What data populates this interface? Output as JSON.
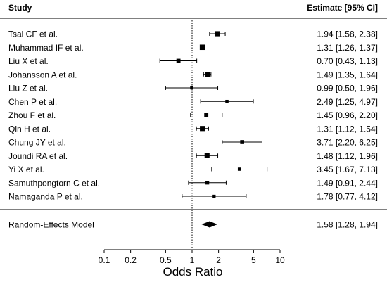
{
  "chart_data": {
    "type": "forest",
    "header_left": "Study",
    "header_right": "Estimate [95% CI]",
    "xlabel": "Odds Ratio",
    "x_scale": "log",
    "xlim": [
      0.1,
      10
    ],
    "x_ticks": [
      0.1,
      0.2,
      0.5,
      1,
      2,
      5,
      10
    ],
    "x_tick_labels": [
      "0.1",
      "0.2",
      "0.5",
      "1",
      "2",
      "5",
      "10"
    ],
    "reference_line": 1,
    "studies": [
      {
        "name": "Tsai CF et al.",
        "estimate": 1.94,
        "lower": 1.58,
        "upper": 2.38,
        "label": "1.94 [1.58, 2.38]",
        "weight": 0.6
      },
      {
        "name": "Muhammad IF et al.",
        "estimate": 1.31,
        "lower": 1.26,
        "upper": 1.37,
        "label": "1.31 [1.26, 1.37]",
        "weight": 0.65
      },
      {
        "name": "Liu X et al.",
        "estimate": 0.7,
        "lower": 0.43,
        "upper": 1.13,
        "label": "0.70 [0.43, 1.13]",
        "weight": 0.4
      },
      {
        "name": "Johansson A et al.",
        "estimate": 1.49,
        "lower": 1.35,
        "upper": 1.64,
        "label": "1.49 [1.35, 1.64]",
        "weight": 0.62
      },
      {
        "name": "Liu Z et al.",
        "estimate": 0.99,
        "lower": 0.5,
        "upper": 1.96,
        "label": "0.99 [0.50, 1.96]",
        "weight": 0.2
      },
      {
        "name": "Chen P et al.",
        "estimate": 2.49,
        "lower": 1.25,
        "upper": 4.97,
        "label": "2.49 [1.25, 4.97]",
        "weight": 0.22
      },
      {
        "name": "Zhou F et al.",
        "estimate": 1.45,
        "lower": 0.96,
        "upper": 2.2,
        "label": "1.45 [0.96, 2.20]",
        "weight": 0.4
      },
      {
        "name": "Qin H et al.",
        "estimate": 1.31,
        "lower": 1.12,
        "upper": 1.54,
        "label": "1.31 [1.12, 1.54]",
        "weight": 0.6
      },
      {
        "name": "Chung JY et al.",
        "estimate": 3.71,
        "lower": 2.2,
        "upper": 6.25,
        "label": "3.71 [2.20, 6.25]",
        "weight": 0.38
      },
      {
        "name": "Joundi RA et al.",
        "estimate": 1.48,
        "lower": 1.12,
        "upper": 1.96,
        "label": "1.48 [1.12, 1.96]",
        "weight": 0.58
      },
      {
        "name": "Yi X et al.",
        "estimate": 3.45,
        "lower": 1.67,
        "upper": 7.13,
        "label": "3.45 [1.67, 7.13]",
        "weight": 0.22
      },
      {
        "name": "Samuthpongtorn C et al.",
        "estimate": 1.49,
        "lower": 0.91,
        "upper": 2.44,
        "label": "1.49 [0.91, 2.44]",
        "weight": 0.32
      },
      {
        "name": "Namaganda P et al.",
        "estimate": 1.78,
        "lower": 0.77,
        "upper": 4.12,
        "label": "1.78 [0.77, 4.12]",
        "weight": 0.18
      }
    ],
    "summary": {
      "name": "Random-Effects Model",
      "estimate": 1.58,
      "lower": 1.28,
      "upper": 1.94,
      "label": "1.58 [1.28, 1.94]"
    }
  }
}
